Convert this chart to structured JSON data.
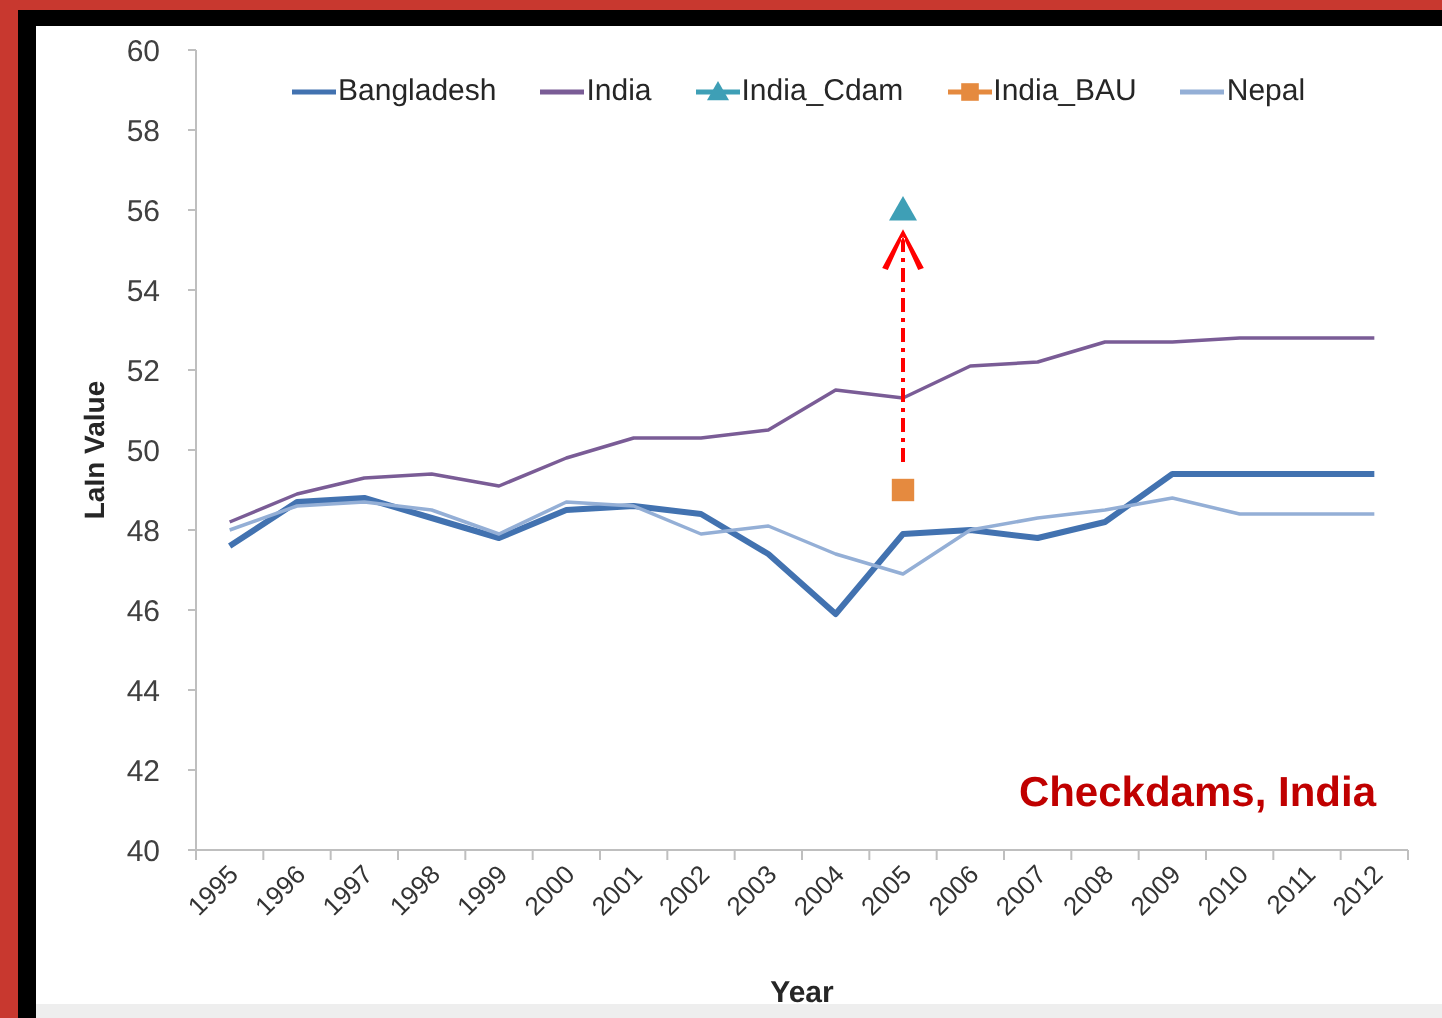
{
  "chart_data": {
    "type": "line",
    "xlabel": "Year",
    "ylabel": "LaIn Value",
    "ylim": [
      40,
      60
    ],
    "yticks": [
      40,
      42,
      44,
      46,
      48,
      50,
      52,
      54,
      56,
      58,
      60
    ],
    "legend": "top",
    "annotations": [
      "Checkdams, India"
    ],
    "categories": [
      "1995",
      "1996",
      "1997",
      "1998",
      "1999",
      "2000",
      "2001",
      "2002",
      "2003",
      "2004",
      "2005",
      "2006",
      "2007",
      "2008",
      "2009",
      "2010",
      "2011",
      "2012"
    ],
    "series": [
      {
        "name": "Bangladesh",
        "color": "#4272b0",
        "marker": "none",
        "values": [
          47.6,
          48.7,
          48.8,
          48.3,
          47.8,
          48.5,
          48.6,
          48.4,
          47.4,
          45.9,
          47.9,
          48.0,
          47.8,
          48.2,
          49.4,
          49.4,
          49.4,
          49.4
        ]
      },
      {
        "name": "India",
        "color": "#7a5c96",
        "marker": "none",
        "values": [
          48.2,
          48.9,
          49.3,
          49.4,
          49.1,
          49.8,
          50.3,
          50.3,
          50.5,
          51.5,
          51.3,
          52.1,
          52.2,
          52.7,
          52.7,
          52.8,
          52.8,
          52.8
        ]
      },
      {
        "name": "India_Cdam",
        "color": "#3e9fb6",
        "marker": "triangle",
        "values": [
          null,
          null,
          null,
          null,
          null,
          null,
          null,
          null,
          null,
          null,
          56,
          null,
          null,
          null,
          null,
          null,
          null,
          null
        ]
      },
      {
        "name": "India_BAU",
        "color": "#e58a3f",
        "marker": "square",
        "values": [
          null,
          null,
          null,
          null,
          null,
          null,
          null,
          null,
          null,
          null,
          49,
          null,
          null,
          null,
          null,
          null,
          null,
          null
        ]
      },
      {
        "name": "Nepal",
        "color": "#94afd6",
        "marker": "none",
        "values": [
          48.0,
          48.6,
          48.7,
          48.5,
          47.9,
          48.7,
          48.6,
          47.9,
          48.1,
          47.4,
          46.9,
          48.0,
          48.3,
          48.5,
          48.8,
          48.4,
          48.4,
          48.4
        ]
      }
    ]
  }
}
